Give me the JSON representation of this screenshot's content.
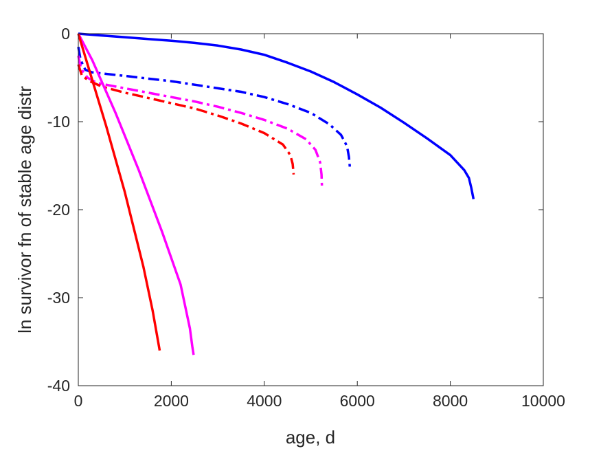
{
  "chart_data": {
    "type": "line",
    "title": "",
    "xlabel": "age, d",
    "ylabel": "ln survivor fn of stable age distr",
    "xlim": [
      0,
      10000
    ],
    "ylim": [
      -40,
      0
    ],
    "xticks": [
      0,
      2000,
      4000,
      6000,
      8000,
      10000
    ],
    "yticks": [
      -40,
      -30,
      -20,
      -10,
      0
    ],
    "xtick_labels": [
      "0",
      "2000",
      "4000",
      "6000",
      "8000",
      "10000"
    ],
    "ytick_labels": [
      "-40",
      "-30",
      "-20",
      "-10",
      "0"
    ],
    "grid": false,
    "legend": "none",
    "series": [
      {
        "color": "#0000ff",
        "dash": "solid",
        "points": [
          [
            0,
            0
          ],
          [
            500,
            -0.2
          ],
          [
            1000,
            -0.4
          ],
          [
            1500,
            -0.6
          ],
          [
            2000,
            -0.8
          ],
          [
            2500,
            -1.05
          ],
          [
            3000,
            -1.35
          ],
          [
            3500,
            -1.8
          ],
          [
            4000,
            -2.4
          ],
          [
            4500,
            -3.3
          ],
          [
            5000,
            -4.3
          ],
          [
            5500,
            -5.5
          ],
          [
            6000,
            -6.9
          ],
          [
            6500,
            -8.4
          ],
          [
            7000,
            -10.1
          ],
          [
            7500,
            -11.9
          ],
          [
            8000,
            -13.8
          ],
          [
            8300,
            -15.5
          ],
          [
            8400,
            -16.4
          ],
          [
            8450,
            -17.5
          ],
          [
            8500,
            -18.8
          ]
        ]
      },
      {
        "color": "#0000ff",
        "dash": "dashdot",
        "points": [
          [
            0,
            -1.5
          ],
          [
            50,
            -3.0
          ],
          [
            150,
            -4.1
          ],
          [
            300,
            -4.4
          ],
          [
            1000,
            -4.8
          ],
          [
            1500,
            -5.1
          ],
          [
            2000,
            -5.4
          ],
          [
            2500,
            -5.8
          ],
          [
            3000,
            -6.2
          ],
          [
            3500,
            -6.6
          ],
          [
            4000,
            -7.2
          ],
          [
            4500,
            -8.0
          ],
          [
            5000,
            -9.0
          ],
          [
            5400,
            -10.3
          ],
          [
            5650,
            -11.5
          ],
          [
            5780,
            -12.8
          ],
          [
            5820,
            -14.0
          ],
          [
            5840,
            -15.2
          ]
        ]
      },
      {
        "color": "#ff00ff",
        "dash": "dashdot",
        "points": [
          [
            0,
            -2.5
          ],
          [
            60,
            -4.0
          ],
          [
            200,
            -5.0
          ],
          [
            400,
            -5.6
          ],
          [
            1000,
            -6.2
          ],
          [
            1500,
            -6.7
          ],
          [
            2000,
            -7.2
          ],
          [
            2500,
            -7.7
          ],
          [
            3000,
            -8.3
          ],
          [
            3500,
            -9.0
          ],
          [
            4000,
            -9.8
          ],
          [
            4500,
            -10.8
          ],
          [
            4900,
            -12.0
          ],
          [
            5100,
            -13.2
          ],
          [
            5200,
            -14.6
          ],
          [
            5230,
            -16.0
          ],
          [
            5240,
            -17.3
          ]
        ]
      },
      {
        "color": "#ff0000",
        "dash": "dashdot",
        "points": [
          [
            0,
            -3.5
          ],
          [
            80,
            -4.8
          ],
          [
            250,
            -5.4
          ],
          [
            500,
            -6.0
          ],
          [
            1000,
            -6.7
          ],
          [
            1500,
            -7.3
          ],
          [
            2000,
            -7.9
          ],
          [
            2500,
            -8.5
          ],
          [
            3000,
            -9.3
          ],
          [
            3500,
            -10.2
          ],
          [
            4000,
            -11.3
          ],
          [
            4400,
            -12.6
          ],
          [
            4560,
            -13.8
          ],
          [
            4610,
            -14.8
          ],
          [
            4630,
            -16.0
          ]
        ]
      },
      {
        "color": "#ff00ff",
        "dash": "solid",
        "points": [
          [
            0,
            0
          ],
          [
            300,
            -3.0
          ],
          [
            800,
            -9.0
          ],
          [
            1300,
            -15.5
          ],
          [
            1800,
            -22.5
          ],
          [
            2200,
            -28.5
          ],
          [
            2400,
            -33.5
          ],
          [
            2450,
            -35.5
          ],
          [
            2480,
            -36.5
          ]
        ]
      },
      {
        "color": "#ff0000",
        "dash": "solid",
        "points": [
          [
            0,
            0
          ],
          [
            200,
            -3.5
          ],
          [
            600,
            -10.5
          ],
          [
            1000,
            -18.0
          ],
          [
            1400,
            -26.5
          ],
          [
            1600,
            -31.5
          ],
          [
            1750,
            -36.0
          ]
        ]
      }
    ]
  }
}
